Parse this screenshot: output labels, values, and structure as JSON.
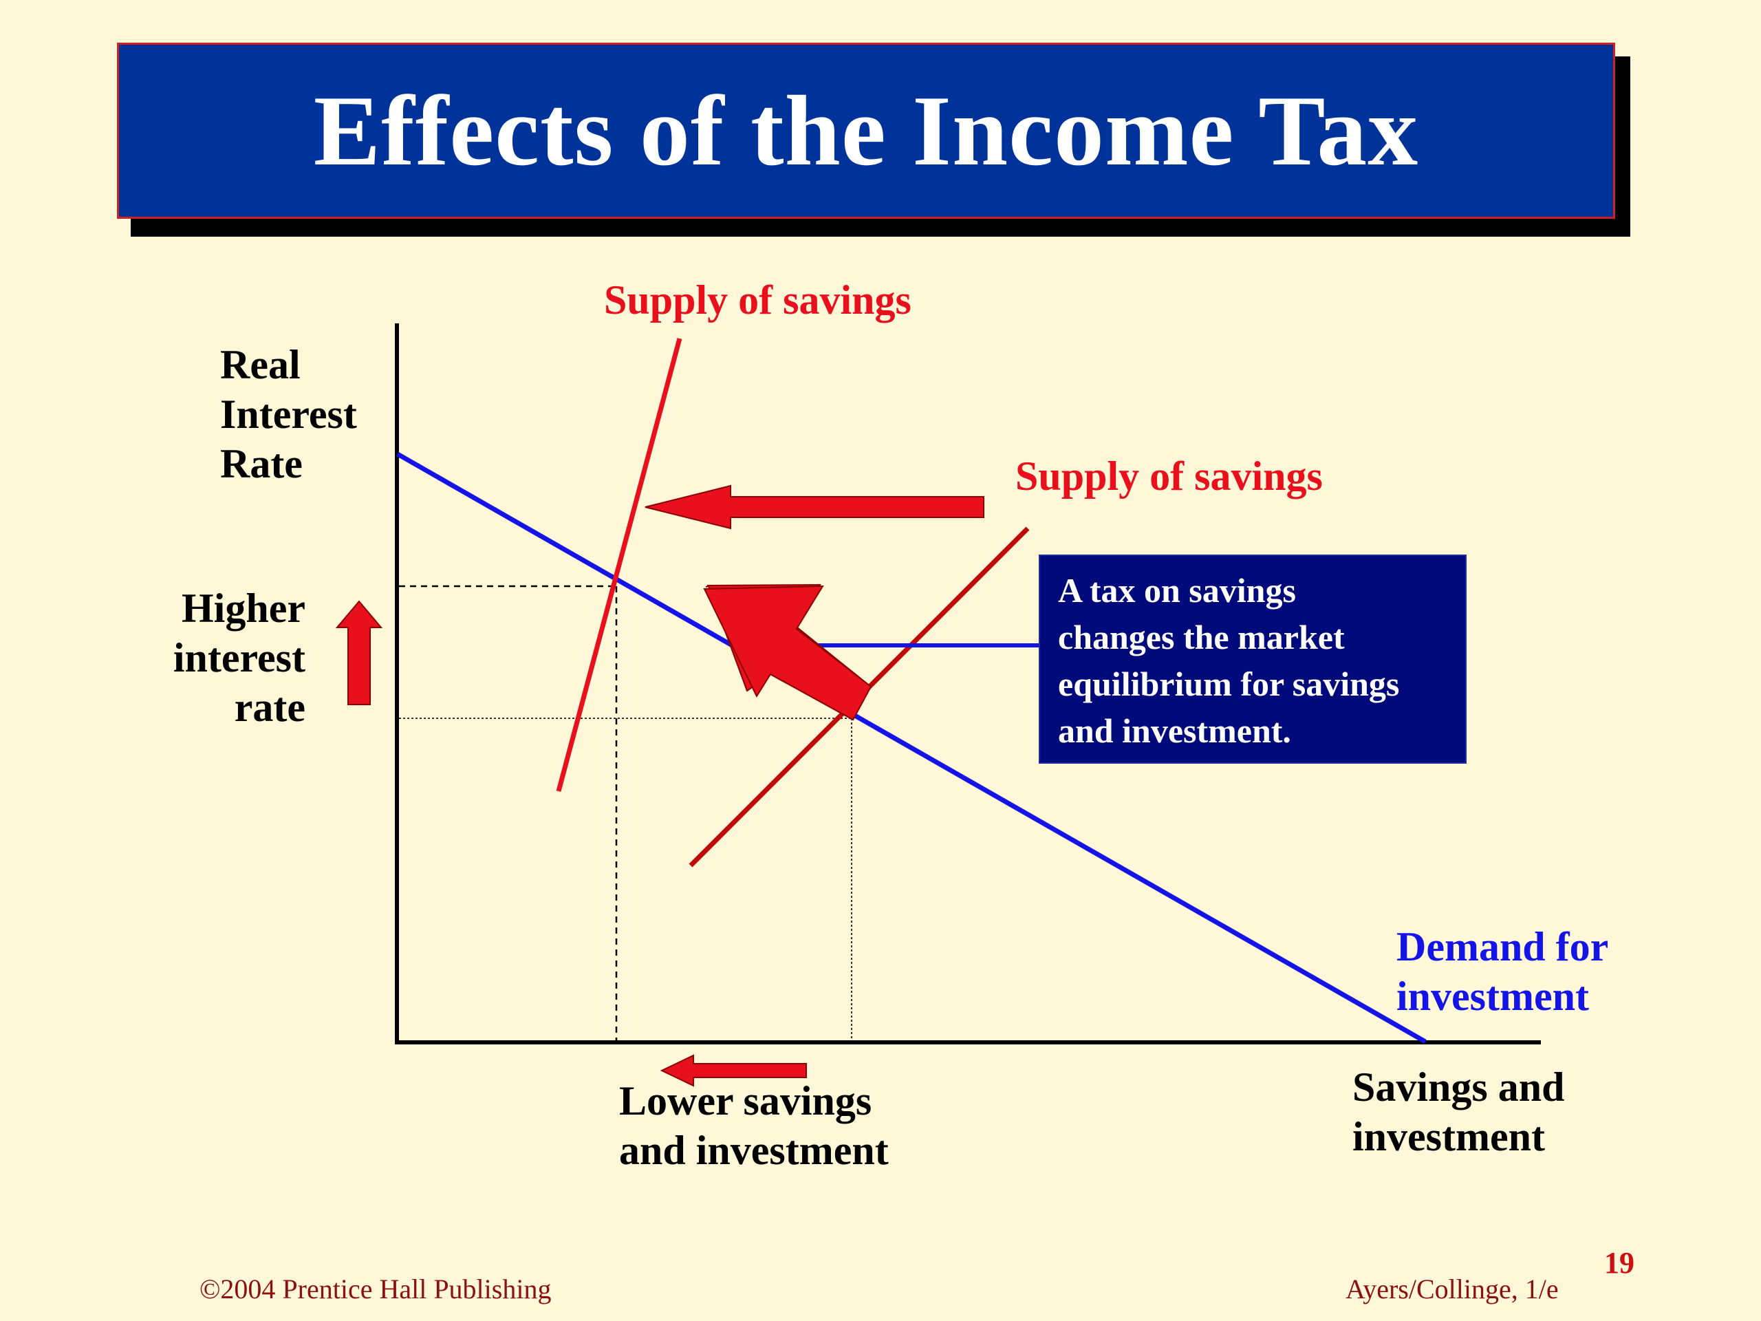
{
  "title": "Effects of the Income Tax",
  "labels": {
    "y_axis": "Real\nInterest\nRate",
    "higher_rate": "Higher\ninterest\nrate",
    "supply_new": "Supply of savings",
    "supply_original": "Supply of savings",
    "demand": "Demand for\ninvestment",
    "lower_savings": "Lower savings\nand investment",
    "x_axis": "Savings and\ninvestment"
  },
  "callout": "A tax on savings\nchanges the market\nequilibrium for savings\nand investment.",
  "footer": {
    "copyright": "©2004 Prentice Hall Publishing",
    "edition": "Ayers/Collinge, 1/e",
    "page": "19"
  },
  "colors": {
    "background": "#FFF8D8",
    "title_bar": "#003399",
    "supply": "#E8101C",
    "supply_original": "#C00A0A",
    "demand": "#1414E6",
    "callout": "#000A7A"
  }
}
